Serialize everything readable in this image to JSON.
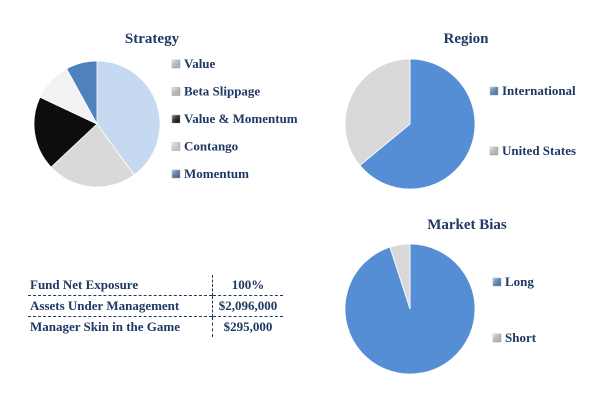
{
  "colors": {
    "title": "#1f3864",
    "text": "#1f3864",
    "slice_edge": "#ffffff"
  },
  "chart_data": [
    {
      "type": "pie",
      "title": "Strategy",
      "labels": [
        "Value",
        "Beta Slippage",
        "Value & Momentum",
        "Contango",
        "Momentum"
      ],
      "values": [
        40,
        23,
        19,
        10,
        8
      ],
      "colors": [
        "#c5d9f1",
        "#d9d9d9",
        "#0d0d0d",
        "#f2f2f2",
        "#4f81bd"
      ],
      "start_angle_deg": 0,
      "direction": "clockwise",
      "legend_position": "right"
    },
    {
      "type": "pie",
      "title": "Region",
      "labels": [
        "International",
        "United States"
      ],
      "values": [
        64,
        36
      ],
      "colors": [
        "#558ed5",
        "#d9d9d9"
      ],
      "start_angle_deg": 0,
      "direction": "clockwise",
      "legend_position": "right"
    },
    {
      "type": "pie",
      "title": "Market Bias",
      "labels": [
        "Long",
        "Short"
      ],
      "values": [
        95,
        5
      ],
      "colors": [
        "#558ed5",
        "#d9d9d9"
      ],
      "start_angle_deg": 0,
      "direction": "clockwise",
      "legend_position": "right"
    }
  ],
  "stats": [
    {
      "label": "Fund Net Exposure",
      "value": "100%"
    },
    {
      "label": "Assets Under Management",
      "value": "$2,096,000"
    },
    {
      "label": "Manager Skin in the Game",
      "value": "$295,000"
    }
  ]
}
